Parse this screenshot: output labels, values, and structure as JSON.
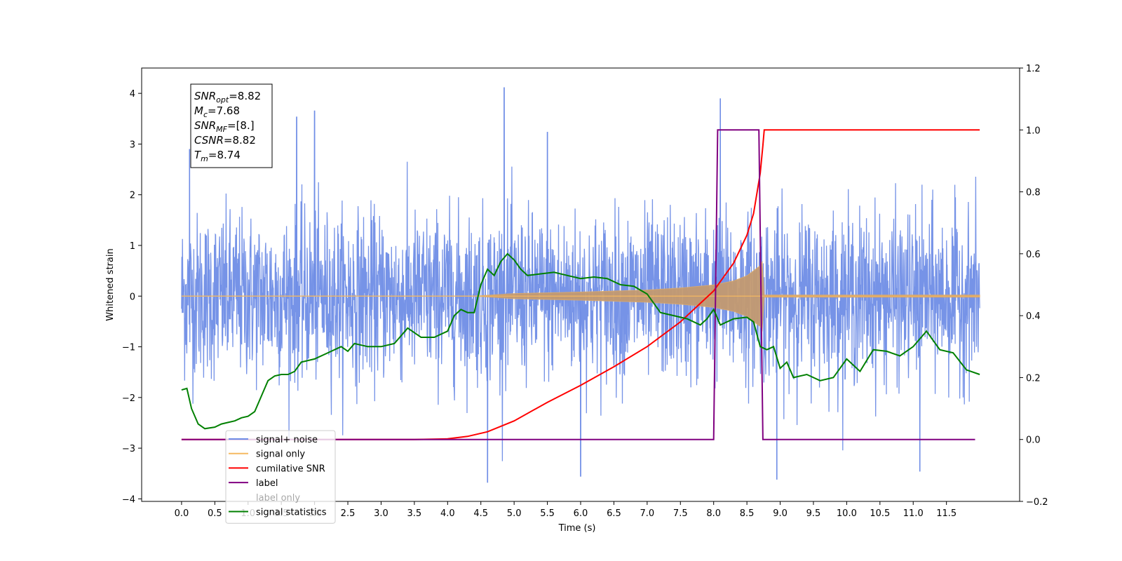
{
  "chart_data": {
    "type": "line",
    "xlabel": "Time (s)",
    "ylabel": "Whitened strain",
    "x_range": [
      -0.6,
      12.6
    ],
    "xlim": [
      -0.6,
      12.6
    ],
    "ylim": [
      -4.05,
      4.5
    ],
    "y2lim": [
      -0.2,
      1.2
    ],
    "x_ticks": [
      0.0,
      0.5,
      1.0,
      1.5,
      2.0,
      2.5,
      3.0,
      3.5,
      4.0,
      4.5,
      5.0,
      5.5,
      6.0,
      6.5,
      7.0,
      7.5,
      8.0,
      8.5,
      9.0,
      9.5,
      10.0,
      10.5,
      11.0,
      11.5
    ],
    "x_tick_labels": [
      "0.0",
      "0.5",
      "1.0",
      "1.5",
      "2.0",
      "2.5",
      "3.0",
      "3.5",
      "4.0",
      "4.5",
      "5.0",
      "5.5",
      "6.0",
      "6.5",
      "7.0",
      "7.5",
      "8.0",
      "8.5",
      "9.0",
      "9.5",
      "10.0",
      "10.5",
      "11.0",
      "11.5"
    ],
    "y_ticks": [
      -4,
      -3,
      -2,
      -1,
      0,
      1,
      2,
      3,
      4
    ],
    "y_tick_labels": [
      "−4",
      "−3",
      "−2",
      "−1",
      "0",
      "1",
      "2",
      "3",
      "4"
    ],
    "y2_ticks": [
      -0.2,
      0.0,
      0.2,
      0.4,
      0.6,
      0.8,
      1.0,
      1.2
    ],
    "y2_tick_labels": [
      "−0.2",
      "0.0",
      "0.2",
      "0.4",
      "0.6",
      "0.8",
      "1.0",
      "1.2"
    ],
    "grid": false,
    "legend_position": "lower-left",
    "annotation": {
      "lines": [
        {
          "base": "SNR",
          "sub": "opt",
          "value": "=8.82"
        },
        {
          "base": "M",
          "sub": "c",
          "value": "=7.68"
        },
        {
          "base": "SNR",
          "sub": "MF",
          "value": "=[8.]"
        },
        {
          "base": "CSNR",
          "sub": "",
          "value": "=8.82"
        },
        {
          "base": "T",
          "sub": "m",
          "value": "=8.74"
        }
      ]
    },
    "series": [
      {
        "name": "signal+ noise",
        "axis": "left",
        "color": "#6f8de6",
        "style": "noise",
        "x_range": [
          0.0,
          12.0
        ],
        "envelope_typical": 1.7,
        "max": 4.12,
        "min": -3.68,
        "peaks": [
          [
            0.12,
            2.9
          ],
          [
            1.73,
            3.54
          ],
          [
            2.0,
            3.66
          ],
          [
            4.85,
            4.12
          ],
          [
            5.5,
            3.24
          ],
          [
            8.1,
            3.9
          ],
          [
            4.6,
            -3.68
          ],
          [
            6.0,
            -3.56
          ],
          [
            8.95,
            -3.62
          ],
          [
            11.1,
            -3.46
          ]
        ]
      },
      {
        "name": "signal only",
        "axis": "left",
        "color": "#c89a6a",
        "style": "chirp",
        "x": [
          0.0,
          4.4,
          5.0,
          6.0,
          7.0,
          7.5,
          8.0,
          8.3,
          8.5,
          8.7,
          8.74,
          8.76,
          12.0
        ],
        "amplitude": [
          0.0,
          0.0,
          0.05,
          0.08,
          0.12,
          0.16,
          0.22,
          0.3,
          0.4,
          0.6,
          0.7,
          0.02,
          0.02
        ]
      },
      {
        "name": "cumilative SNR",
        "axis": "right",
        "color": "#ff0000",
        "x": [
          0.0,
          3.5,
          4.0,
          4.3,
          4.6,
          5.0,
          5.5,
          6.0,
          6.5,
          7.0,
          7.5,
          8.0,
          8.3,
          8.5,
          8.6,
          8.7,
          8.74,
          8.76,
          12.0
        ],
        "values": [
          0.0,
          0.0,
          0.002,
          0.01,
          0.025,
          0.06,
          0.12,
          0.175,
          0.235,
          0.3,
          0.38,
          0.48,
          0.57,
          0.66,
          0.73,
          0.86,
          0.95,
          1.0,
          1.0
        ]
      },
      {
        "name": "label",
        "axis": "right",
        "color": "#800080",
        "x": [
          0.0,
          8.0,
          8.06,
          8.68,
          8.74,
          11.93
        ],
        "values": [
          0.0,
          0.0,
          1.0,
          1.0,
          0.0,
          0.0
        ]
      },
      {
        "name": "label only",
        "axis": "right",
        "color": "#ff8c69",
        "hidden": true
      },
      {
        "name": "signal statistics",
        "axis": "right",
        "color": "#008000",
        "x": [
          0.0,
          0.08,
          0.15,
          0.25,
          0.35,
          0.5,
          0.6,
          0.7,
          0.8,
          0.9,
          1.0,
          1.1,
          1.2,
          1.3,
          1.4,
          1.5,
          1.6,
          1.7,
          1.8,
          2.0,
          2.2,
          2.4,
          2.5,
          2.6,
          2.8,
          3.0,
          3.2,
          3.4,
          3.6,
          3.8,
          4.0,
          4.1,
          4.2,
          4.3,
          4.4,
          4.5,
          4.6,
          4.7,
          4.8,
          4.9,
          5.0,
          5.1,
          5.2,
          5.4,
          5.6,
          5.8,
          6.0,
          6.2,
          6.4,
          6.6,
          6.8,
          7.0,
          7.2,
          7.4,
          7.6,
          7.8,
          7.9,
          8.0,
          8.1,
          8.3,
          8.5,
          8.6,
          8.7,
          8.8,
          8.9,
          9.0,
          9.1,
          9.2,
          9.4,
          9.6,
          9.8,
          10.0,
          10.2,
          10.4,
          10.6,
          10.8,
          11.0,
          11.2,
          11.4,
          11.6,
          11.8,
          12.0
        ],
        "values": [
          0.16,
          0.165,
          0.1,
          0.05,
          0.035,
          0.04,
          0.05,
          0.055,
          0.06,
          0.07,
          0.075,
          0.09,
          0.14,
          0.19,
          0.205,
          0.21,
          0.21,
          0.22,
          0.25,
          0.26,
          0.28,
          0.3,
          0.285,
          0.31,
          0.3,
          0.3,
          0.31,
          0.36,
          0.33,
          0.33,
          0.35,
          0.4,
          0.42,
          0.41,
          0.41,
          0.5,
          0.55,
          0.53,
          0.575,
          0.6,
          0.58,
          0.55,
          0.53,
          0.535,
          0.54,
          0.53,
          0.52,
          0.525,
          0.52,
          0.5,
          0.495,
          0.47,
          0.41,
          0.4,
          0.39,
          0.37,
          0.39,
          0.42,
          0.37,
          0.39,
          0.395,
          0.38,
          0.3,
          0.29,
          0.3,
          0.23,
          0.25,
          0.2,
          0.21,
          0.19,
          0.2,
          0.26,
          0.22,
          0.29,
          0.285,
          0.27,
          0.3,
          0.35,
          0.29,
          0.28,
          0.225,
          0.21
        ]
      }
    ]
  }
}
